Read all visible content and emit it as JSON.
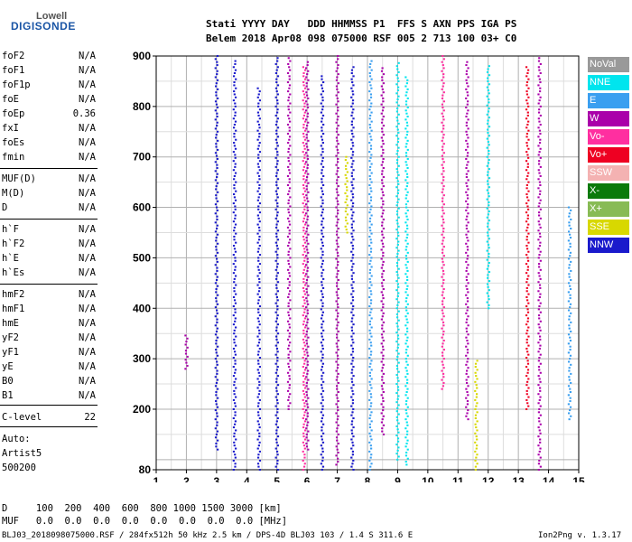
{
  "logo": {
    "line1": "Lowell",
    "line2": "DIGISONDE"
  },
  "header": {
    "row1": "Stati YYYY DAY   DDD HHMMSS P1  FFS S AXN PPS IGA PS",
    "row2": "Belem 2018 Apr08 098 075000 RSF 005 2 713 100 03+ C0"
  },
  "params": [
    {
      "label": "foF2",
      "value": "N/A"
    },
    {
      "label": "foF1",
      "value": "N/A"
    },
    {
      "label": "foF1p",
      "value": "N/A"
    },
    {
      "label": "foE",
      "value": "N/A"
    },
    {
      "label": "foEp",
      "value": "0.36"
    },
    {
      "label": "fxI",
      "value": "N/A"
    },
    {
      "label": "foEs",
      "value": "N/A"
    },
    {
      "label": "fmin",
      "value": "N/A"
    },
    {
      "label": "MUF(D)",
      "value": "N/A"
    },
    {
      "label": "M(D)",
      "value": "N/A"
    },
    {
      "label": "D",
      "value": "N/A"
    },
    {
      "label": "h`F",
      "value": "N/A"
    },
    {
      "label": "h`F2",
      "value": "N/A"
    },
    {
      "label": "h`E",
      "value": "N/A"
    },
    {
      "label": "h`Es",
      "value": "N/A"
    },
    {
      "label": "hmF2",
      "value": "N/A"
    },
    {
      "label": "hmF1",
      "value": "N/A"
    },
    {
      "label": "hmE",
      "value": "N/A"
    },
    {
      "label": "yF2",
      "value": "N/A"
    },
    {
      "label": "yF1",
      "value": "N/A"
    },
    {
      "label": "yE",
      "value": "N/A"
    },
    {
      "label": "B0",
      "value": "N/A"
    },
    {
      "label": "B1",
      "value": "N/A"
    },
    {
      "label": "C-level",
      "value": "22"
    }
  ],
  "auto": {
    "line1": "Auto:",
    "line2": "Artist5",
    "line3": "500200"
  },
  "footer": {
    "d_row": "D     100  200  400  600  800 1000 1500 3000 [km]",
    "muf_row": "MUF   0.0  0.0  0.0  0.0  0.0  0.0  0.0  0.0 [MHz]",
    "file_line": "BLJ03_2018098075000.RSF / 284fx512h 50 kHz 2.5 km / DPS-4D BLJ03 103 / 1.4 S 311.6 E",
    "version": "Ion2Png v. 1.3.17"
  },
  "legend": [
    {
      "label": "NoVal",
      "color": "#999999"
    },
    {
      "label": "NNE",
      "color": "#00e5ee"
    },
    {
      "label": "E",
      "color": "#3a9ff0"
    },
    {
      "label": "W",
      "color": "#aa00aa"
    },
    {
      "label": "Vo-",
      "color": "#ff2fa0"
    },
    {
      "label": "Vo+",
      "color": "#ee0022"
    },
    {
      "label": "SSW",
      "color": "#f4b2b2"
    },
    {
      "label": "X-",
      "color": "#0a7a0a"
    },
    {
      "label": "X+",
      "color": "#88bb55"
    },
    {
      "label": "SSE",
      "color": "#d8d800"
    },
    {
      "label": "NNW",
      "color": "#1a1acc"
    }
  ],
  "chart_data": {
    "type": "scatter",
    "xlim": [
      1,
      15
    ],
    "ylim": [
      80,
      900
    ],
    "x_ticks": [
      "1",
      "2",
      "3",
      "4",
      "5",
      "6",
      "7",
      "8",
      "9",
      "10",
      "11",
      "12",
      "13",
      "14",
      "15"
    ],
    "y_ticks": [
      "80",
      "200",
      "300",
      "400",
      "500",
      "600",
      "700",
      "800",
      "900"
    ],
    "grid": true,
    "traces": [
      {
        "color": "#1a1acc",
        "x": 3.6,
        "y0": 80,
        "y1": 890
      },
      {
        "color": "#1a1acc",
        "x": 3.0,
        "y0": 120,
        "y1": 900
      },
      {
        "color": "#aa00aa",
        "x": 2.0,
        "y0": 280,
        "y1": 350
      },
      {
        "color": "#1a1acc",
        "x": 4.4,
        "y0": 80,
        "y1": 840
      },
      {
        "color": "#1a1acc",
        "x": 5.0,
        "y0": 80,
        "y1": 900
      },
      {
        "color": "#aa00aa",
        "x": 5.4,
        "y0": 200,
        "y1": 900
      },
      {
        "color": "#ff2fa0",
        "x": 5.9,
        "y0": 80,
        "y1": 880
      },
      {
        "color": "#aa00aa",
        "x": 6.0,
        "y0": 120,
        "y1": 890
      },
      {
        "color": "#1a1acc",
        "x": 6.5,
        "y0": 80,
        "y1": 860
      },
      {
        "color": "#aa00aa",
        "x": 7.0,
        "y0": 90,
        "y1": 900
      },
      {
        "color": "#1a1acc",
        "x": 7.5,
        "y0": 80,
        "y1": 880
      },
      {
        "color": "#d8d800",
        "x": 7.3,
        "y0": 550,
        "y1": 700
      },
      {
        "color": "#3a9ff0",
        "x": 8.1,
        "y0": 80,
        "y1": 890
      },
      {
        "color": "#00e5ee",
        "x": 9.0,
        "y0": 100,
        "y1": 890
      },
      {
        "color": "#00e5ee",
        "x": 9.3,
        "y0": 90,
        "y1": 860
      },
      {
        "color": "#aa00aa",
        "x": 8.5,
        "y0": 150,
        "y1": 880
      },
      {
        "color": "#ff2fa0",
        "x": 10.5,
        "y0": 240,
        "y1": 900
      },
      {
        "color": "#aa00aa",
        "x": 11.3,
        "y0": 180,
        "y1": 890
      },
      {
        "color": "#d8d800",
        "x": 11.6,
        "y0": 80,
        "y1": 300
      },
      {
        "color": "#ee0022",
        "x": 13.3,
        "y0": 200,
        "y1": 880
      },
      {
        "color": "#aa00aa",
        "x": 13.7,
        "y0": 80,
        "y1": 900
      },
      {
        "color": "#3a9ff0",
        "x": 14.7,
        "y0": 180,
        "y1": 600
      },
      {
        "color": "#00e5ee",
        "x": 12.0,
        "y0": 400,
        "y1": 880
      }
    ]
  }
}
